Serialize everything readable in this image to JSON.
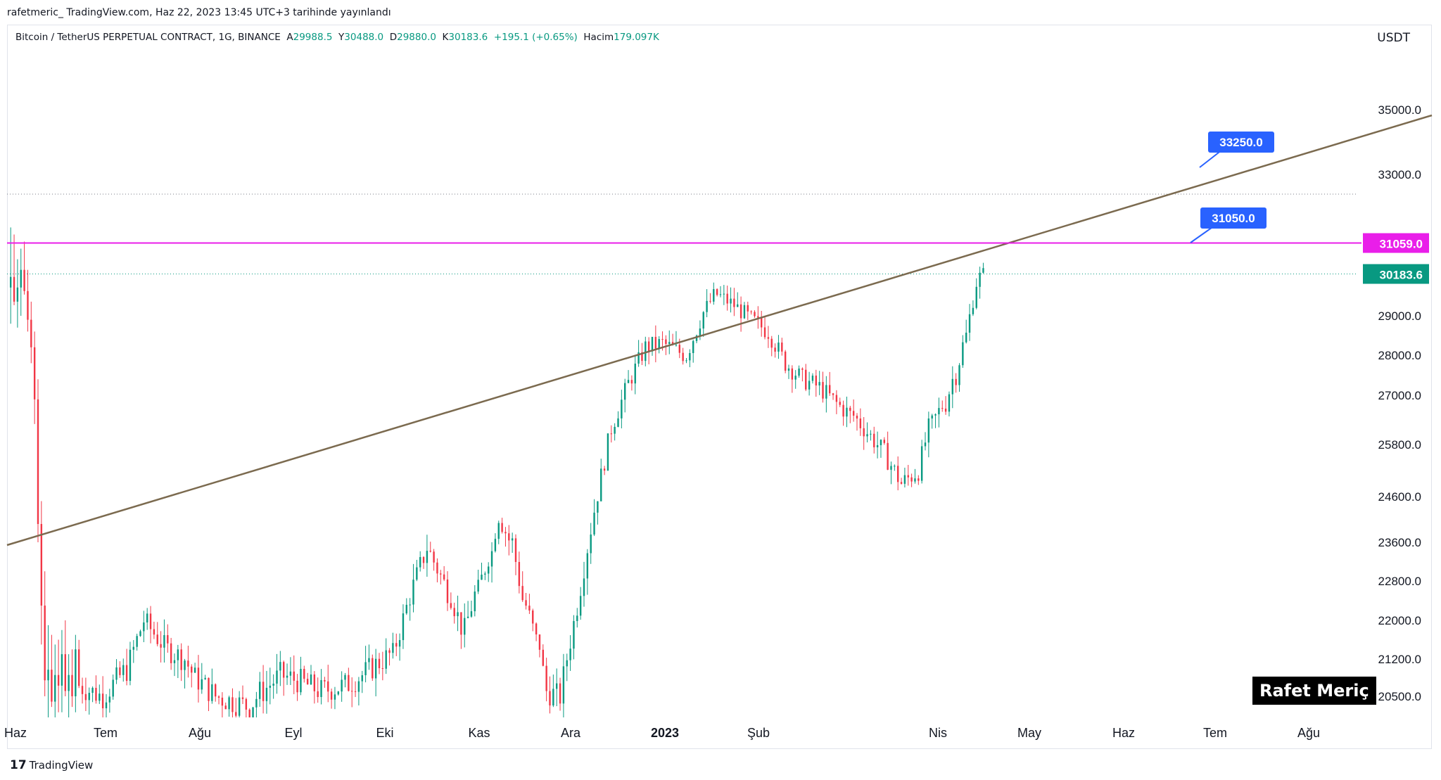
{
  "published": "rafetmeric_  TradingView.com, Haz 22, 2023 13:45 UTC+3 tarihinde yayınlandı",
  "legend": {
    "symbol": "Bitcoin / TetherUS PERPETUAL CONTRACT, 1G, BINANCE",
    "o_label": "A",
    "o_value": "29988.5",
    "h_label": "Y",
    "h_value": "30488.0",
    "l_label": "D",
    "l_value": "29880.0",
    "c_label": "K",
    "c_value": "30183.6",
    "change": "+195.1 (+0.65%)",
    "vol_label": "Hacim",
    "vol_value": "179.097K"
  },
  "currency": "USDT",
  "watermark": "Rafet Meriç",
  "brand": "TradingView",
  "colors": {
    "up": "#089981",
    "down": "#f23645",
    "trend": "#7b6a4f",
    "magenta": "#e91ee9",
    "callout": "#2962ff",
    "price_tag": "#089981"
  },
  "chart_data": {
    "type": "candlestick",
    "symbol": "BTCUSDT.P",
    "timeframe": "1D",
    "y_tick_labels": [
      "35000.0",
      "33000.0",
      "29000.0",
      "28000.0",
      "27000.0",
      "25800.0",
      "24600.0",
      "23600.0",
      "22800.0",
      "22000.0",
      "21200.0",
      "20500.0"
    ],
    "y_tick_values": [
      35000,
      33000,
      29000,
      28000,
      27000,
      25800,
      24600,
      23600,
      22800,
      22000,
      21200,
      20500
    ],
    "x_tick_labels": [
      "Haz",
      "Tem",
      "Ağu",
      "Eyl",
      "Eki",
      "Kas",
      "Ara",
      "2023",
      "Şub",
      "Nis",
      "May",
      "Haz",
      "Tem",
      "Ağu"
    ],
    "last_price": "30183.6",
    "horizontal_level": "31059.0",
    "callouts": [
      "33250.0",
      "31050.0"
    ],
    "trendline": {
      "start": [
        "2022-06-13",
        23100
      ],
      "end": [
        "2023-08-31",
        35000
      ]
    },
    "candles_ohlc": [
      [
        29800,
        31500,
        28800,
        30100
      ],
      [
        30100,
        31300,
        29300,
        29400
      ],
      [
        29400,
        30600,
        28700,
        29800
      ],
      [
        29800,
        30900,
        29000,
        30300
      ],
      [
        30300,
        31100,
        29600,
        29700
      ],
      [
        29700,
        30300,
        28600,
        28900
      ],
      [
        28900,
        29400,
        27800,
        28200
      ],
      [
        28200,
        28600,
        26300,
        26900
      ],
      [
        26900,
        27400,
        23600,
        24000
      ],
      [
        24000,
        24500,
        21500,
        22300
      ],
      [
        22300,
        23000,
        20500,
        20800
      ],
      [
        20800,
        21900,
        20100,
        21000
      ],
      [
        21000,
        21700,
        20300,
        20400
      ],
      [
        20400,
        21500,
        20000,
        20900
      ],
      [
        20900,
        21600,
        20200,
        20700
      ],
      [
        20700,
        21800,
        20200,
        21300
      ],
      [
        21300,
        22000,
        20500,
        20600
      ],
      [
        20600,
        21300,
        20100,
        20900
      ],
      [
        20900,
        21400,
        20300,
        20500
      ],
      [
        20500,
        21700,
        20200,
        21400
      ]
    ]
  }
}
